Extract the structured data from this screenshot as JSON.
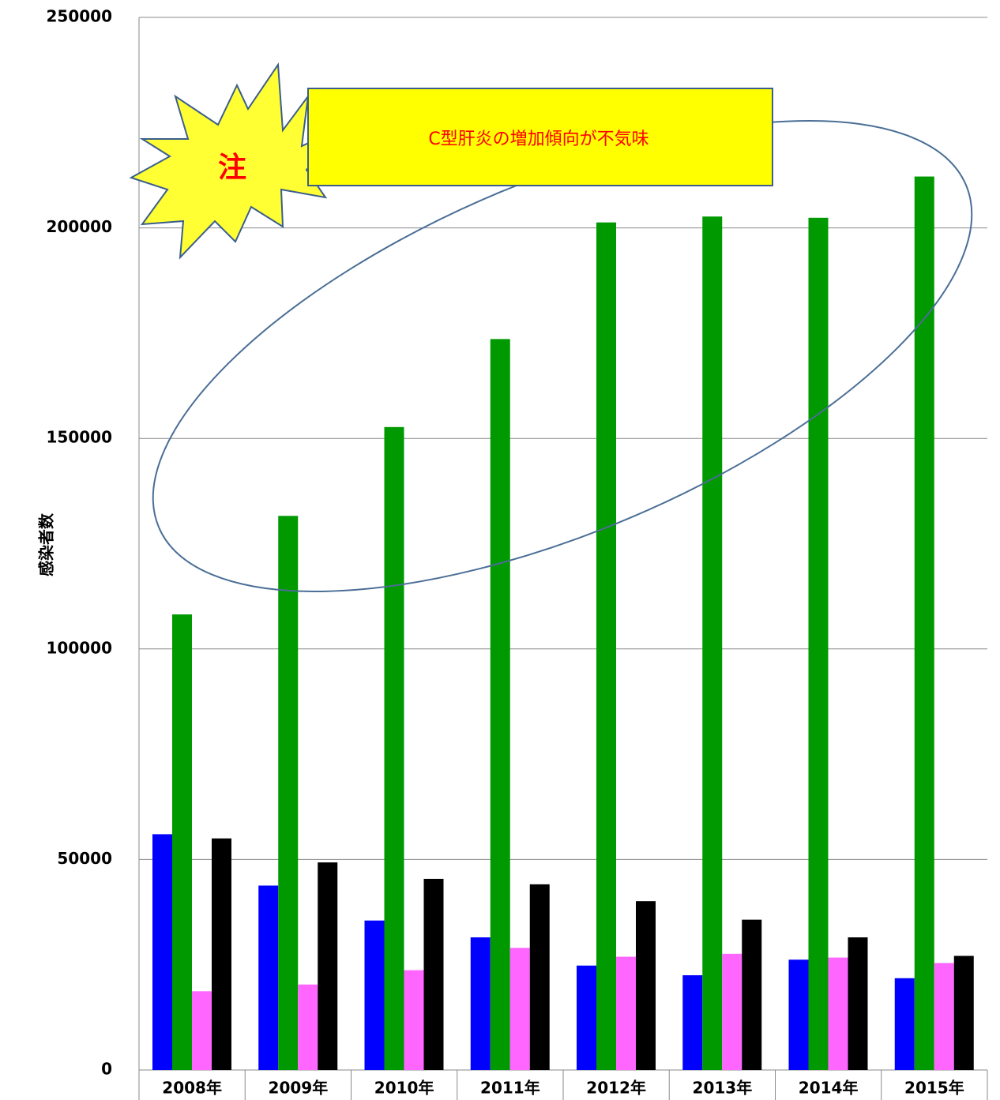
{
  "chart_data": {
    "type": "bar",
    "categories": [
      "2008年",
      "2009年",
      "2010年",
      "2011年",
      "2012年",
      "2013年",
      "2014年",
      "2015年"
    ],
    "series": [
      {
        "color": "#0000ff",
        "values": [
          56000,
          43800,
          35500,
          31500,
          24800,
          22500,
          26200,
          21800
        ]
      },
      {
        "color": "#009900",
        "values": [
          108200,
          131600,
          152700,
          173600,
          201300,
          202700,
          202400,
          212200
        ]
      },
      {
        "color": "#ff66ff",
        "values": [
          18700,
          20300,
          23700,
          29000,
          26900,
          27600,
          26700,
          25400
        ]
      },
      {
        "color": "#000000",
        "values": [
          55000,
          49300,
          45400,
          44100,
          40100,
          35700,
          31500,
          27100
        ]
      }
    ],
    "ylabel": "感染者数",
    "ylim": [
      0,
      250000
    ],
    "yticks": [
      "0",
      "50000",
      "100000",
      "150000",
      "200000",
      "250000"
    ],
    "grid": true
  },
  "annotations": {
    "callout_text": "C型肝炎の増加傾向が不気味",
    "burst_text": "注",
    "callout_fill": "#ffff00",
    "burst_fill": "#ffff33",
    "ellipse_color": "#4a6e96"
  }
}
